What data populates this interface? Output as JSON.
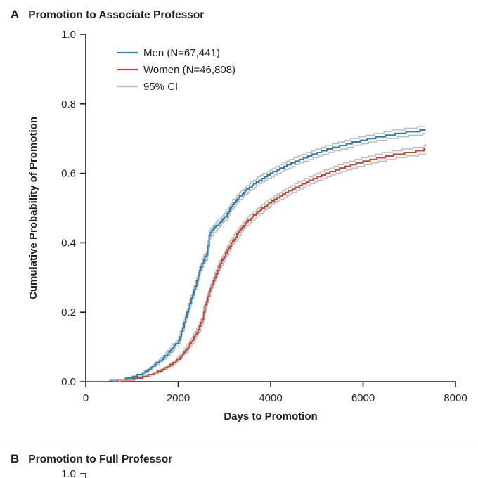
{
  "panel_a": {
    "label": "A",
    "title": "Promotion to Associate Professor"
  },
  "panel_b": {
    "label": "B",
    "title": "Promotion to Full Professor",
    "partial_tick_label": "1.0"
  },
  "chart_data": {
    "type": "line",
    "title": "Promotion to Associate Professor",
    "xlabel": "Days to Promotion",
    "ylabel": "Cumulative Probability of Promotion",
    "xlim": [
      0,
      8000
    ],
    "ylim": [
      0,
      1.0
    ],
    "xticks": [
      0,
      2000,
      4000,
      6000,
      8000
    ],
    "yticks": [
      0.0,
      0.2,
      0.4,
      0.6,
      0.8,
      1.0
    ],
    "grid": false,
    "legend_position": "top-left-inside",
    "ci_label": "95% CI",
    "ci_color": "#bcbcbc",
    "ci_offset": 0.011,
    "axis_color": "#231f20",
    "series": [
      {
        "name": "Men (N=67,441)",
        "color": "#2f7fb5",
        "x": [
          0,
          400,
          800,
          1000,
          1200,
          1400,
          1500,
          1600,
          1700,
          1800,
          1900,
          2000,
          2060,
          2120,
          2180,
          2250,
          2320,
          2400,
          2450,
          2500,
          2560,
          2620,
          2660,
          2750,
          2850,
          2950,
          3050,
          3120,
          3180,
          3280,
          3380,
          3500,
          3650,
          3800,
          4000,
          4200,
          4400,
          4600,
          4800,
          5000,
          5200,
          5400,
          5600,
          5800,
          6000,
          6200,
          6400,
          6600,
          6800,
          7000,
          7200,
          7350
        ],
        "y": [
          0,
          0.001,
          0.006,
          0.012,
          0.022,
          0.038,
          0.05,
          0.06,
          0.072,
          0.085,
          0.1,
          0.115,
          0.14,
          0.165,
          0.195,
          0.225,
          0.255,
          0.29,
          0.315,
          0.335,
          0.355,
          0.365,
          0.42,
          0.437,
          0.452,
          0.467,
          0.48,
          0.5,
          0.512,
          0.527,
          0.54,
          0.555,
          0.57,
          0.584,
          0.599,
          0.613,
          0.626,
          0.638,
          0.648,
          0.658,
          0.667,
          0.675,
          0.682,
          0.689,
          0.695,
          0.701,
          0.706,
          0.711,
          0.715,
          0.719,
          0.722,
          0.725
        ]
      },
      {
        "name": "Women (N=46,808)",
        "color": "#bf4a38",
        "x": [
          0,
          800,
          1000,
          1200,
          1400,
          1600,
          1800,
          1900,
          2000,
          2100,
          2200,
          2300,
          2400,
          2460,
          2520,
          2560,
          2620,
          2680,
          2750,
          2820,
          2900,
          3000,
          3100,
          3200,
          3300,
          3400,
          3500,
          3650,
          3800,
          4000,
          4200,
          4400,
          4600,
          4800,
          5000,
          5200,
          5400,
          5600,
          5800,
          6000,
          6200,
          6400,
          6600,
          6800,
          7000,
          7200,
          7300,
          7350
        ],
        "y": [
          0,
          0.003,
          0.006,
          0.012,
          0.02,
          0.03,
          0.045,
          0.055,
          0.065,
          0.08,
          0.098,
          0.118,
          0.142,
          0.158,
          0.178,
          0.21,
          0.235,
          0.262,
          0.288,
          0.312,
          0.338,
          0.362,
          0.388,
          0.41,
          0.428,
          0.446,
          0.462,
          0.48,
          0.497,
          0.517,
          0.534,
          0.549,
          0.563,
          0.576,
          0.588,
          0.599,
          0.609,
          0.618,
          0.626,
          0.633,
          0.64,
          0.646,
          0.651,
          0.656,
          0.66,
          0.664,
          0.666,
          0.672
        ]
      }
    ]
  }
}
